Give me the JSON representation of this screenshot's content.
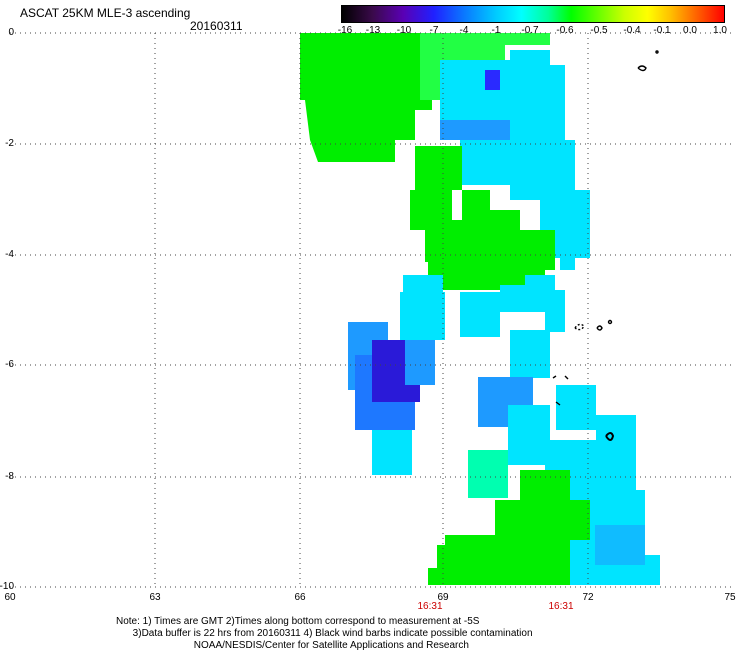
{
  "header": {
    "title": "ASCAT 25KM MLE-3 ascending",
    "date": "20160311"
  },
  "colorbar": {
    "ticks": [
      "-16",
      "-13",
      "-10",
      "-7",
      "-4",
      "-1",
      "-0.7",
      "-0.6",
      "-0.5",
      "-0.4",
      "-0.1",
      "0.0",
      "1.0"
    ]
  },
  "axes": {
    "y_labels": [
      "0",
      "-2",
      "-4",
      "-6",
      "-8",
      "-10"
    ],
    "x_labels": [
      "60",
      "63",
      "66",
      "69",
      "72",
      "75"
    ]
  },
  "times": [
    "16:31",
    "16:31"
  ],
  "note": {
    "line1": "Note: 1) Times are GMT 2)Times along bottom correspond to measurement at -5S",
    "line2": "3)Data buffer is 22 hrs from 20160311 4) Black wind barbs indicate possible contamination",
    "line3": "NOAA/NESDIS/Center for Satellite Applications and Research"
  },
  "colors": {
    "green": "#00ee00",
    "cyan": "#00e4ff",
    "blue": "#1e78ff",
    "dark_blue": "#2a1ad8",
    "teal": "#00ffb0"
  }
}
